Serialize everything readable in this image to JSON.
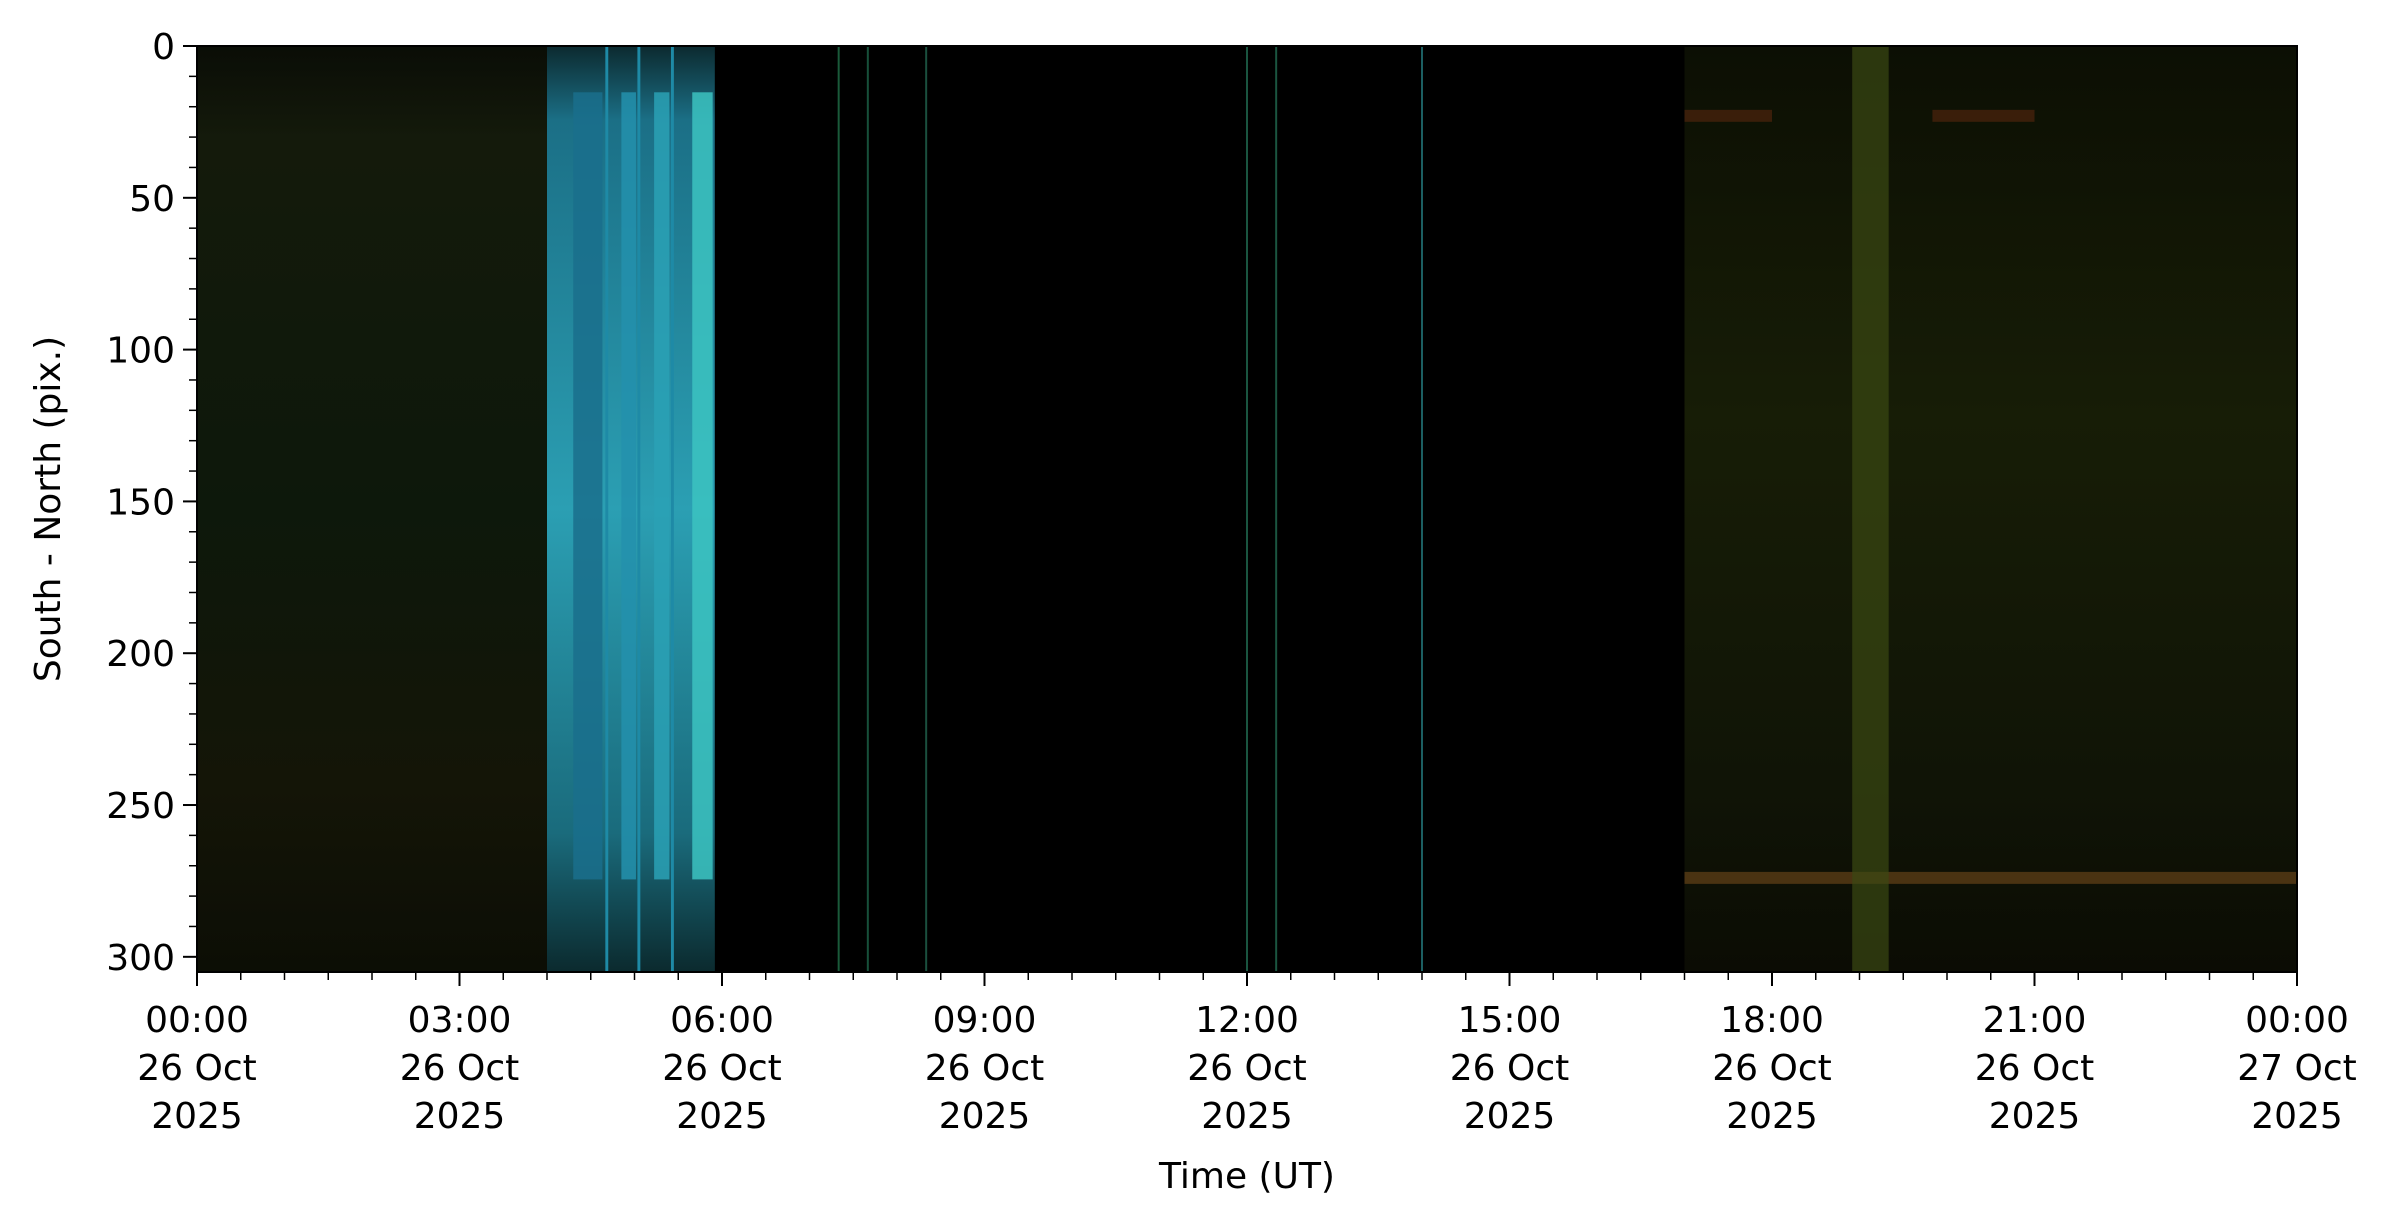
{
  "chart_data": {
    "type": "heatmap",
    "title": "",
    "xlabel": "Time (UT)",
    "ylabel": "South - North (pix.)",
    "xlim": [
      "2025-10-26T00:00",
      "2025-10-27T00:00"
    ],
    "ylim": [
      305,
      0
    ],
    "y_inverted": true,
    "grid": false,
    "x_ticks": [
      {
        "time": "00:00",
        "day": "26 Oct",
        "year": "2025"
      },
      {
        "time": "03:00",
        "day": "26 Oct",
        "year": "2025"
      },
      {
        "time": "06:00",
        "day": "26 Oct",
        "year": "2025"
      },
      {
        "time": "09:00",
        "day": "26 Oct",
        "year": "2025"
      },
      {
        "time": "12:00",
        "day": "26 Oct",
        "year": "2025"
      },
      {
        "time": "15:00",
        "day": "26 Oct",
        "year": "2025"
      },
      {
        "time": "18:00",
        "day": "26 Oct",
        "year": "2025"
      },
      {
        "time": "21:00",
        "day": "26 Oct",
        "year": "2025"
      },
      {
        "time": "00:00",
        "day": "27 Oct",
        "year": "2025"
      }
    ],
    "y_ticks": [
      0,
      50,
      100,
      150,
      200,
      250,
      300
    ],
    "segments": [
      {
        "start": "2025-10-26T00:00",
        "end": "2025-10-26T04:00",
        "color": "#0b1409",
        "description_color": "dark olive-green"
      },
      {
        "start": "2025-10-26T04:00",
        "end": "2025-10-26T05:55",
        "color": "#1e8aa6",
        "description_color": "cyan bands"
      },
      {
        "start": "2025-10-26T05:55",
        "end": "2025-10-26T17:00",
        "color": "#000000",
        "description_color": "black"
      },
      {
        "start": "2025-10-26T17:00",
        "end": "2025-10-27T00:00",
        "color": "#141a06",
        "description_color": "dark olive"
      }
    ],
    "cyan_bands": [
      {
        "start": "2025-10-26T04:00",
        "end": "2025-10-26T04:40",
        "color": "#1a6f8c"
      },
      {
        "start": "2025-10-26T04:42",
        "end": "2025-10-26T05:02",
        "color": "#2390ad"
      },
      {
        "start": "2025-10-26T05:04",
        "end": "2025-10-26T05:25",
        "color": "#2aa1b5"
      },
      {
        "start": "2025-10-26T05:27",
        "end": "2025-10-26T05:55",
        "color": "#3cc3c1"
      }
    ],
    "thin_lines": [
      {
        "time": "2025-10-26T07:20",
        "color": "#1a5a3a"
      },
      {
        "time": "2025-10-26T07:40",
        "color": "#17503a"
      },
      {
        "time": "2025-10-26T08:20",
        "color": "#1a4f3e"
      },
      {
        "time": "2025-10-26T12:00",
        "color": "#1a5540"
      },
      {
        "time": "2025-10-26T12:20",
        "color": "#1a5540"
      },
      {
        "time": "2025-10-26T14:00",
        "color": "#1c5f62"
      }
    ],
    "horizontal_bands": [
      {
        "start": "2025-10-26T17:00",
        "end": "2025-10-27T00:00",
        "y": 274,
        "color": "#4a3312"
      },
      {
        "start": "2025-10-26T17:00",
        "end": "2025-10-26T18:00",
        "y": 23,
        "color": "#3a1e0a"
      },
      {
        "start": "2025-10-26T19:50",
        "end": "2025-10-26T21:00",
        "y": 23,
        "color": "#3a1e0a"
      }
    ],
    "vertical_feature": {
      "start": "2025-10-26T18:55",
      "end": "2025-10-26T19:20",
      "color": "#3a4812"
    }
  }
}
